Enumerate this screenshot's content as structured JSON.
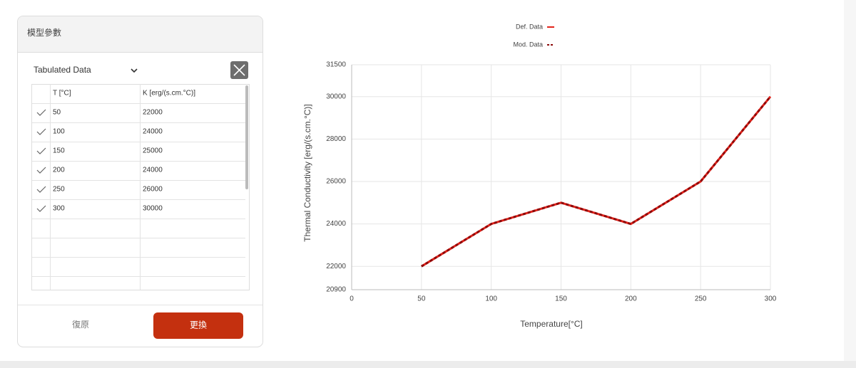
{
  "panel": {
    "title": "模型參數",
    "dropdown": "Tabulated Data",
    "table": {
      "headers": [
        "T [°C]",
        "K [erg/(s.cm.°C)]"
      ],
      "rows": [
        [
          "50",
          "22000"
        ],
        [
          "100",
          "24000"
        ],
        [
          "150",
          "25000"
        ],
        [
          "200",
          "24000"
        ],
        [
          "250",
          "26000"
        ],
        [
          "300",
          "30000"
        ]
      ]
    },
    "buttons": {
      "reset": "復原",
      "apply": "更換"
    }
  },
  "chart_data": {
    "type": "line",
    "x_label": "Temperature[°C]",
    "y_label": "Thermal Conductivity [erg/(s.cm.°C)]",
    "x": [
      50,
      100,
      150,
      200,
      250,
      300
    ],
    "series": [
      {
        "name": "Def. Data",
        "color": "#e3231b",
        "style": "solid",
        "values": [
          22000,
          24000,
          25000,
          24000,
          26000,
          30000
        ]
      },
      {
        "name": "Mod. Data",
        "color": "#8c0a0a",
        "style": "dashed",
        "values": [
          22000,
          24000,
          25000,
          24000,
          26000,
          30000
        ]
      }
    ],
    "xlim": [
      0,
      300
    ],
    "xticks": [
      0,
      50,
      100,
      150,
      200,
      250,
      300
    ],
    "ylim": [
      20900,
      31500
    ],
    "yticks": [
      20900,
      22000,
      24000,
      26000,
      28000,
      30000,
      31500
    ],
    "grid": true,
    "legend": "top"
  }
}
